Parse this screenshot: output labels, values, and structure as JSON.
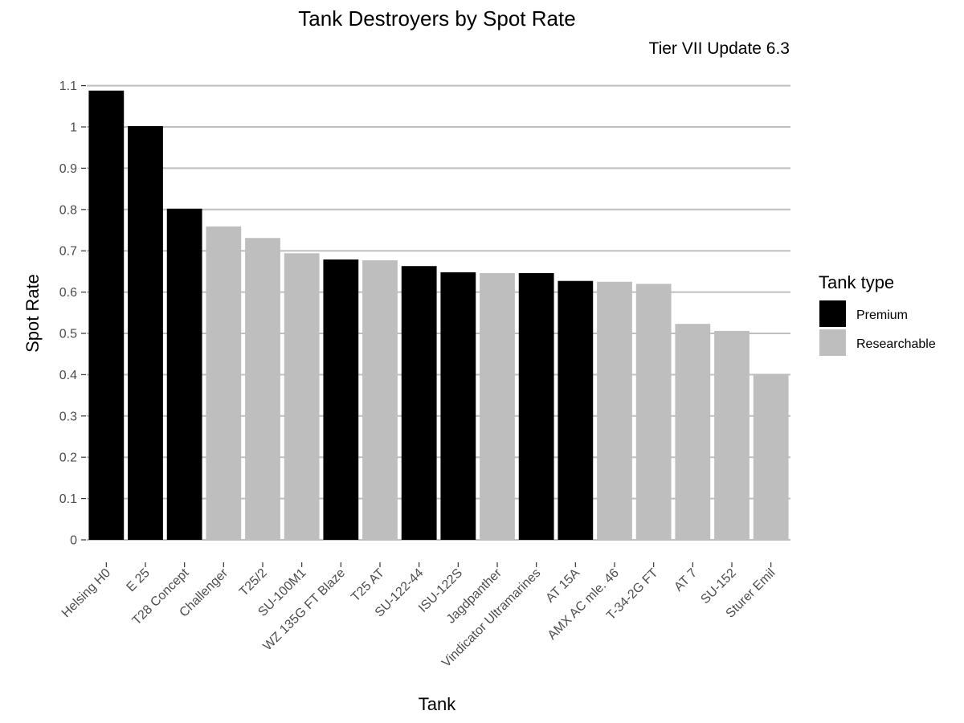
{
  "chart_data": {
    "type": "bar",
    "title": "Tank Destroyers by Spot Rate",
    "subtitle": "Tier VII Update 6.3",
    "xlabel": "Tank",
    "ylabel": "Spot Rate",
    "ylim": [
      0,
      1.1
    ],
    "yticks": [
      "0",
      "0.1",
      "0.2",
      "0.3",
      "0.4",
      "0.5",
      "0.6",
      "0.7",
      "0.8",
      "0.9",
      "1",
      "1.1"
    ],
    "grid": "horizontal",
    "legend": {
      "title": "Tank type",
      "position": "right",
      "items": [
        {
          "label": "Premium",
          "color": "#000000"
        },
        {
          "label": "Researchable",
          "color": "#bebebe"
        }
      ]
    },
    "categories": [
      "Helsing H0",
      "E 25",
      "T28 Concept",
      "Challenger",
      "T25/2",
      "SU-100M1",
      "WZ 135G FT Blaze",
      "T25 AT",
      "SU-122-44",
      "ISU-122S",
      "Jagdpanther",
      "Vindicator Ultramarines",
      "AT 15A",
      "AMX AC mle. 46",
      "T-34-2G FT",
      "AT 7",
      "SU-152",
      "Sturer Emil"
    ],
    "values": [
      1.088,
      1.002,
      0.802,
      0.759,
      0.731,
      0.694,
      0.679,
      0.677,
      0.663,
      0.648,
      0.646,
      0.646,
      0.627,
      0.625,
      0.62,
      0.523,
      0.506,
      0.402
    ],
    "types": [
      "Premium",
      "Premium",
      "Premium",
      "Researchable",
      "Researchable",
      "Researchable",
      "Premium",
      "Researchable",
      "Premium",
      "Premium",
      "Researchable",
      "Premium",
      "Premium",
      "Researchable",
      "Researchable",
      "Researchable",
      "Researchable",
      "Researchable"
    ]
  }
}
